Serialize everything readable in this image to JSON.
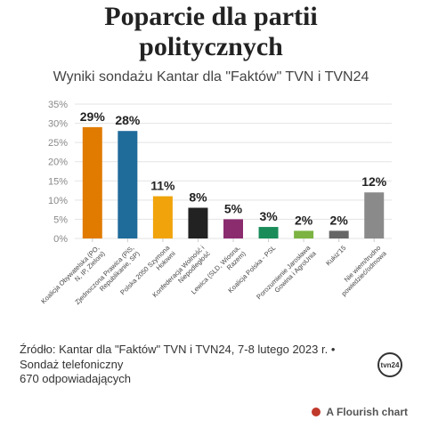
{
  "chart_data": {
    "type": "bar",
    "title": "Poparcie dla partii politycznych",
    "subtitle": "Wyniki sondażu Kantar dla \"Faktów\" TVN i TVN24",
    "categories": [
      "Koalicja Obywatelska (PO, N, IP, Zieloni)",
      "Zjednoczona Prawica (PiS, Republikanie, SP)",
      "Polska 2050 Szymona Hołowni",
      "Konfederacja Wolność i Niepodległość",
      "Lewica (SLD, Wiosna, Razem)",
      "Koalicja Polska - PSL",
      "Porozumienie Jarosława Gowina i AgroUnia",
      "Kukiz'15",
      "Nie wiem/trudno powiedzieć/odmowa"
    ],
    "values": [
      29,
      28,
      11,
      8,
      5,
      3,
      2,
      2,
      12
    ],
    "value_labels": [
      "29%",
      "28%",
      "11%",
      "8%",
      "5%",
      "3%",
      "2%",
      "2%",
      "12%"
    ],
    "colors": [
      "#e07b00",
      "#1f6b9a",
      "#f0a30a",
      "#222222",
      "#8b2c6e",
      "#1a8c5a",
      "#7cb342",
      "#666666",
      "#8a8a8a"
    ],
    "ylim": [
      0,
      35
    ],
    "yticks": [
      {
        "value": 0,
        "label": "0%"
      },
      {
        "value": 5,
        "label": "5%"
      },
      {
        "value": 10,
        "label": "10%"
      },
      {
        "value": 15,
        "label": "15%"
      },
      {
        "value": 20,
        "label": "20%"
      },
      {
        "value": 25,
        "label": "25%"
      },
      {
        "value": 30,
        "label": "30%"
      },
      {
        "value": 35,
        "label": "35%"
      }
    ],
    "grid": true,
    "source": "Źródło: Kantar dla \"Faktów\" TVN i TVN24, 7-8 lutego 2023 r. • Sondaż telefoniczny",
    "sample": "670 odpowiadających",
    "logo": "tvn24",
    "credit": "A Flourish chart"
  }
}
